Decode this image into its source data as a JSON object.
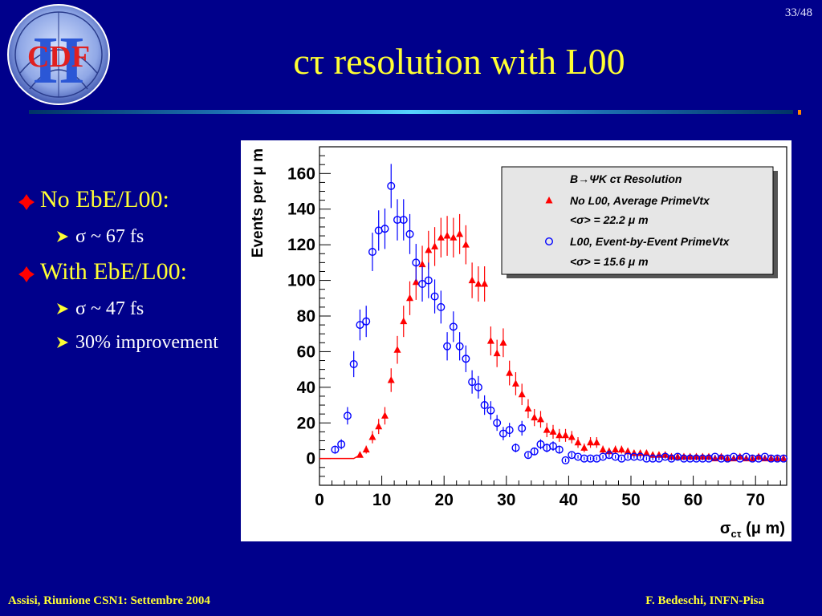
{
  "page_number": "33/48",
  "logo": {
    "letters": "CDF",
    "roman": "II"
  },
  "title": "cτ resolution with L00",
  "bullets": [
    {
      "label": "No EbE/L00:",
      "sub": [
        {
          "text": "σ ~ 67 fs"
        }
      ]
    },
    {
      "label": "With EbE/L00:",
      "sub": [
        {
          "text": "σ ~ 47 fs"
        },
        {
          "text": "30% improvement"
        }
      ]
    }
  ],
  "footer": {
    "left": "Assisi, Riunione CSN1: Settembre 2004",
    "right": "F. Bedeschi, INFN-Pisa"
  },
  "colors": {
    "background": "#00008b",
    "title": "#ffff33",
    "series_no_l00": "#ff0000",
    "series_l00": "#0000ff"
  },
  "chart_data": {
    "type": "scatter",
    "xlabel_main": "σ",
    "xlabel_sub": "cτ",
    "xlabel_tail": "(μ m)",
    "ylabel": "Events per μ m",
    "xlim": [
      0,
      75
    ],
    "ylim": [
      -15,
      175
    ],
    "x_ticks": [
      0,
      10,
      20,
      30,
      40,
      50,
      60,
      70
    ],
    "y_ticks": [
      0,
      20,
      40,
      60,
      80,
      100,
      120,
      140,
      160
    ],
    "legend": {
      "title": "B→ΨK cτ Resolution",
      "position": "top-right",
      "entries": [
        {
          "label": "No L00, Average PrimeVtx",
          "sub": "<σ> = 22.2 μ m",
          "marker": "triangle"
        },
        {
          "label": "L00, Event-by-Event PrimeVtx",
          "sub": "<σ> = 15.6 μ m",
          "marker": "circle"
        }
      ]
    },
    "series": [
      {
        "name": "No L00, Average PrimeVtx",
        "marker": "triangle",
        "color": "#ff0000",
        "x": [
          6.5,
          7.5,
          8.5,
          9.5,
          10.5,
          11.5,
          12.5,
          13.5,
          14.5,
          15.5,
          16.5,
          17.5,
          18.5,
          19.5,
          20.5,
          21.5,
          22.5,
          23.5,
          24.5,
          25.5,
          26.5,
          27.5,
          28.5,
          29.5,
          30.5,
          31.5,
          32.5,
          33.5,
          34.5,
          35.5,
          36.5,
          37.5,
          38.5,
          39.5,
          40.5,
          41.5,
          42.5,
          43.5,
          44.5,
          45.5,
          46.5,
          47.5,
          48.5,
          49.5,
          50.5,
          51.5,
          52.5,
          53.5,
          54.5,
          55.5,
          56.5,
          57.5,
          58.5,
          59.5,
          60.5,
          61.5,
          62.5,
          63.5,
          64.5,
          65.5,
          66.5,
          67.5,
          68.5,
          69.5,
          70.5,
          71.5,
          72.5,
          73.5,
          74.5
        ],
        "y": [
          2,
          5,
          12,
          18,
          24,
          44,
          61,
          77,
          90,
          99,
          109,
          117,
          119,
          124,
          125,
          124,
          126,
          120,
          100,
          98,
          98,
          66,
          59,
          65,
          48,
          42,
          36,
          28,
          23,
          22,
          16,
          15,
          13,
          13,
          12,
          9,
          6,
          9,
          9,
          5,
          4,
          5,
          5,
          4,
          3,
          3,
          3,
          2,
          2,
          2,
          1,
          1,
          1,
          1,
          1,
          1,
          1,
          0,
          1,
          0,
          0,
          1,
          0,
          0,
          1,
          0,
          0,
          0,
          0
        ]
      },
      {
        "name": "L00, Event-by-Event PrimeVtx",
        "marker": "circle",
        "color": "#0000ff",
        "x": [
          2.5,
          3.5,
          4.5,
          5.5,
          6.5,
          7.5,
          8.5,
          9.5,
          10.5,
          11.5,
          12.5,
          13.5,
          14.5,
          15.5,
          16.5,
          17.5,
          18.5,
          19.5,
          20.5,
          21.5,
          22.5,
          23.5,
          24.5,
          25.5,
          26.5,
          27.5,
          28.5,
          29.5,
          30.5,
          31.5,
          32.5,
          33.5,
          34.5,
          35.5,
          36.5,
          37.5,
          38.5,
          39.5,
          40.5,
          41.5,
          42.5,
          43.5,
          44.5,
          45.5,
          46.5,
          47.5,
          48.5,
          49.5,
          50.5,
          51.5,
          52.5,
          53.5,
          54.5,
          55.5,
          56.5,
          57.5,
          58.5,
          59.5,
          60.5,
          61.5,
          62.5,
          63.5,
          64.5,
          65.5,
          66.5,
          67.5,
          68.5,
          69.5,
          70.5,
          71.5,
          72.5,
          73.5,
          74.5
        ],
        "y": [
          5,
          8,
          24,
          53,
          75,
          77,
          116,
          128,
          129,
          153,
          134,
          134,
          126,
          110,
          98,
          100,
          91,
          85,
          63,
          74,
          63,
          56,
          43,
          40,
          30,
          27,
          20,
          14,
          16,
          6,
          17,
          2,
          4,
          8,
          6,
          7,
          5,
          -1,
          2,
          1,
          0,
          0,
          0,
          1,
          2,
          1,
          0,
          1,
          1,
          1,
          0,
          0,
          0,
          1,
          0,
          1,
          0,
          0,
          0,
          0,
          0,
          1,
          0,
          0,
          1,
          0,
          1,
          0,
          0,
          1,
          0,
          0,
          0
        ]
      }
    ]
  }
}
